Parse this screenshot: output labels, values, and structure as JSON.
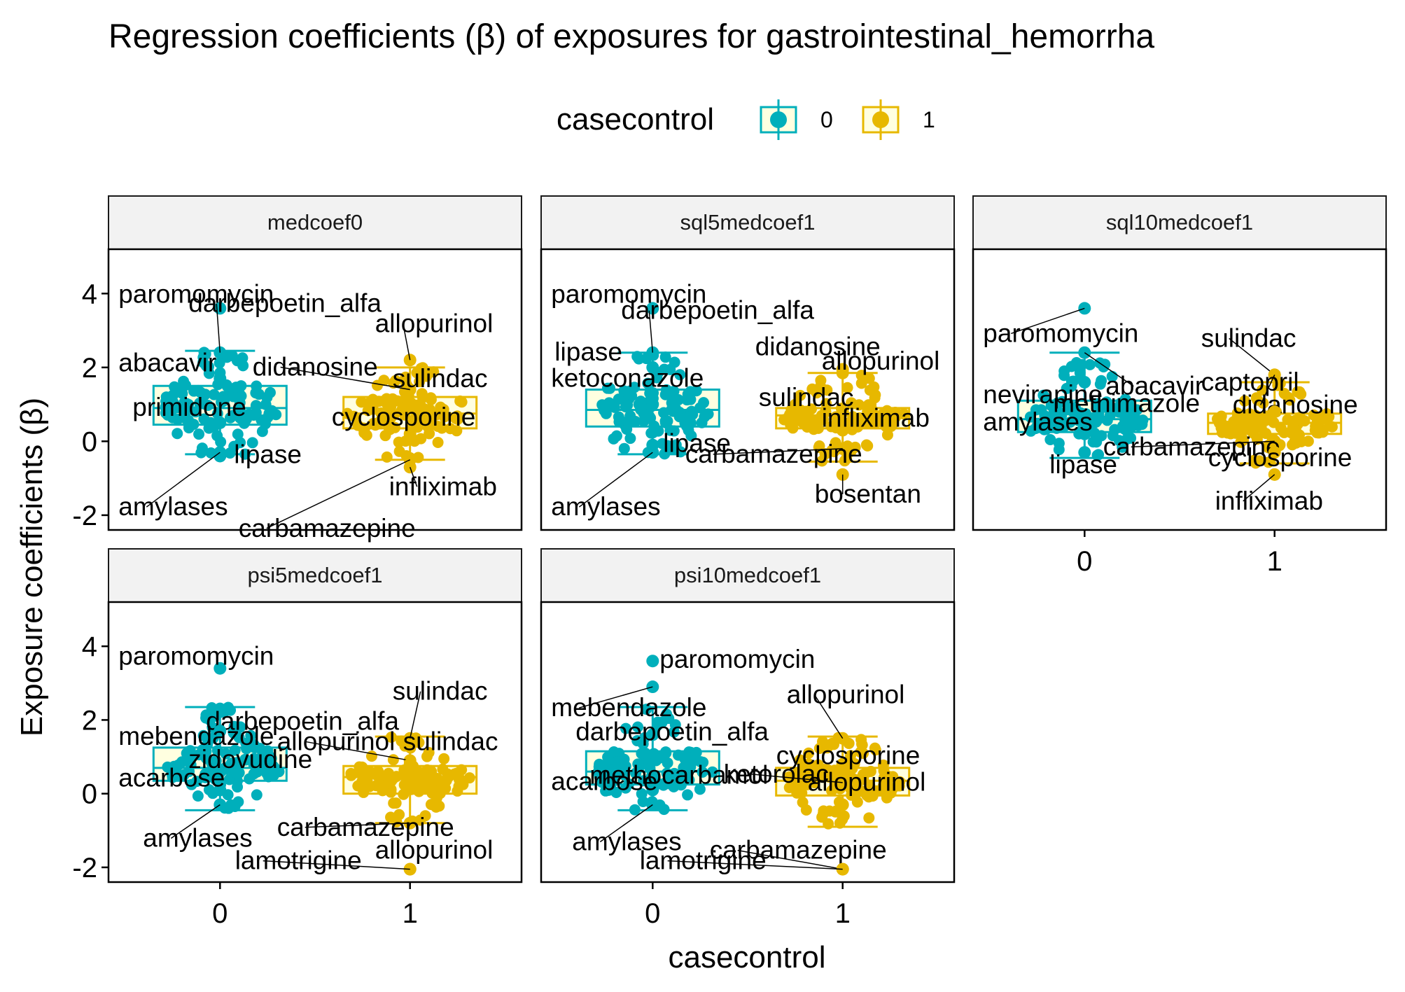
{
  "chart_data": {
    "type": "box",
    "title": "Regression coefficients (β) of exposures for gastrointestinal_hemorrha",
    "xlabel": "casecontrol",
    "ylabel": "Exposure coefficients (β)",
    "categories": [
      "0",
      "1"
    ],
    "ylim": [
      -2.4,
      5.2
    ],
    "yticks": [
      -2,
      0,
      2,
      4
    ],
    "yticklabels": [
      "-2",
      "0",
      "2",
      "4"
    ],
    "grid": false,
    "legend": {
      "title": "casecontrol",
      "position": "top",
      "entries": [
        {
          "label": "0",
          "color": "#00AFBB"
        },
        {
          "label": "1",
          "color": "#E7B800"
        }
      ]
    },
    "colors": {
      "0": "#00AFBB",
      "1": "#E7B800",
      "box_fill": "#FFFFE0"
    },
    "panels": [
      {
        "name": "medcoef0",
        "boxes": [
          {
            "group": "0",
            "min": -0.35,
            "q1": 0.45,
            "median": 0.9,
            "q3": 1.5,
            "max": 2.45
          },
          {
            "group": "1",
            "min": -0.5,
            "q1": 0.35,
            "median": 0.75,
            "q3": 1.2,
            "max": 2.0
          }
        ],
        "labels": [
          {
            "group": "0",
            "text": "paromomycin",
            "y": 3.6
          },
          {
            "group": "0",
            "text": "darbepoetin_alfa",
            "y": 2.4
          },
          {
            "group": "0",
            "text": "abacavir",
            "y": 1.7
          },
          {
            "group": "0",
            "text": "primidone",
            "y": 0.5
          },
          {
            "group": "0",
            "text": "lipase",
            "y": -0.4
          },
          {
            "group": "0",
            "text": "amylases",
            "y": -0.3
          },
          {
            "group": "1",
            "text": "allopurinol",
            "y": 2.2
          },
          {
            "group": "1",
            "text": "didanosine",
            "y": 1.4
          },
          {
            "group": "1",
            "text": "sulindac",
            "y": 0.9
          },
          {
            "group": "1",
            "text": "cyclosporine",
            "y": 0.2
          },
          {
            "group": "1",
            "text": "carbamazepine",
            "y": -0.5
          },
          {
            "group": "1",
            "text": "infliximab",
            "y": -0.7
          }
        ]
      },
      {
        "name": "sql5medcoef1",
        "boxes": [
          {
            "group": "0",
            "min": -0.35,
            "q1": 0.4,
            "median": 0.85,
            "q3": 1.4,
            "max": 2.4
          },
          {
            "group": "1",
            "min": -0.55,
            "q1": 0.35,
            "median": 0.7,
            "q3": 0.9,
            "max": 1.85
          }
        ],
        "labels": [
          {
            "group": "0",
            "text": "paromomycin",
            "y": 3.6
          },
          {
            "group": "0",
            "text": "darbepoetin_alfa",
            "y": 2.4
          },
          {
            "group": "0",
            "text": "lipase",
            "y": 2.0
          },
          {
            "group": "0",
            "text": "ketoconazole",
            "y": 1.0
          },
          {
            "group": "0",
            "text": "lipase",
            "y": -0.1
          },
          {
            "group": "0",
            "text": "amylases",
            "y": -0.3
          },
          {
            "group": "1",
            "text": "didanosine",
            "y": 1.95
          },
          {
            "group": "1",
            "text": "allopurinol",
            "y": 1.85
          },
          {
            "group": "1",
            "text": "sulindac",
            "y": 0.8
          },
          {
            "group": "1",
            "text": "infliximab",
            "y": 0.3
          },
          {
            "group": "1",
            "text": "carbamazepine",
            "y": -0.2
          },
          {
            "group": "1",
            "text": "bosentan",
            "y": -0.9
          }
        ]
      },
      {
        "name": "sql10medcoef1",
        "boxes": [
          {
            "group": "0",
            "min": -0.45,
            "q1": 0.25,
            "median": 0.6,
            "q3": 1.1,
            "max": 2.4
          },
          {
            "group": "1",
            "min": -0.6,
            "q1": 0.2,
            "median": 0.5,
            "q3": 0.75,
            "max": 1.6
          }
        ],
        "labels": [
          {
            "group": "0",
            "text": "paromomycin",
            "y": 3.6
          },
          {
            "group": "0",
            "text": "abacavir",
            "y": 2.4
          },
          {
            "group": "0",
            "text": "nevirapine",
            "y": 1.6
          },
          {
            "group": "0",
            "text": "methimazole",
            "y": 0.6
          },
          {
            "group": "0",
            "text": "amylases",
            "y": 0.2
          },
          {
            "group": "0",
            "text": "lipase",
            "y": -0.3
          },
          {
            "group": "1",
            "text": "sulindac",
            "y": 1.8
          },
          {
            "group": "1",
            "text": "didanosine",
            "y": 1.8
          },
          {
            "group": "1",
            "text": "captopril",
            "y": 0.8
          },
          {
            "group": "1",
            "text": "carbamazepine",
            "y": 0.0
          },
          {
            "group": "1",
            "text": "cyclosporine",
            "y": -0.3
          },
          {
            "group": "1",
            "text": "infliximab",
            "y": -0.9
          }
        ]
      },
      {
        "name": "psi5medcoef1",
        "boxes": [
          {
            "group": "0",
            "min": -0.45,
            "q1": 0.35,
            "median": 0.7,
            "q3": 1.25,
            "max": 2.35
          },
          {
            "group": "1",
            "min": -0.8,
            "q1": 0.0,
            "median": 0.45,
            "q3": 0.75,
            "max": 1.55
          }
        ],
        "labels": [
          {
            "group": "0",
            "text": "paromomycin",
            "y": 3.4
          },
          {
            "group": "0",
            "text": "darbepoetin_alfa",
            "y": 2.3
          },
          {
            "group": "0",
            "text": "mebendazole",
            "y": 1.7
          },
          {
            "group": "0",
            "text": "zidovudine",
            "y": 0.6
          },
          {
            "group": "0",
            "text": "acarbose",
            "y": 0.1
          },
          {
            "group": "0",
            "text": "amylases",
            "y": -0.3
          },
          {
            "group": "1",
            "text": "sulindac",
            "y": 1.5
          },
          {
            "group": "1",
            "text": "allopurinol",
            "y": 0.9
          },
          {
            "group": "1",
            "text": "sulindac",
            "y": 0.8
          },
          {
            "group": "1",
            "text": "carbamazepine",
            "y": -0.8
          },
          {
            "group": "1",
            "text": "allopurinol",
            "y": -2.05
          },
          {
            "group": "1",
            "text": "lamotrigine",
            "y": -2.05
          }
        ]
      },
      {
        "name": "psi10medcoef1",
        "boxes": [
          {
            "group": "0",
            "min": -0.45,
            "q1": 0.25,
            "median": 0.6,
            "q3": 1.15,
            "max": 2.35
          },
          {
            "group": "1",
            "min": -0.9,
            "q1": -0.05,
            "median": 0.35,
            "q3": 0.7,
            "max": 1.55
          }
        ],
        "labels": [
          {
            "group": "0",
            "text": "paromomycin",
            "y": 3.6
          },
          {
            "group": "0",
            "text": "mebendazole",
            "y": 2.9
          },
          {
            "group": "0",
            "text": "darbepoetin_alfa",
            "y": 1.6
          },
          {
            "group": "0",
            "text": "methocarbamol",
            "y": 0.5
          },
          {
            "group": "0",
            "text": "acarbose",
            "y": 0.1
          },
          {
            "group": "0",
            "text": "amylases",
            "y": -0.3
          },
          {
            "group": "1",
            "text": "allopurinol",
            "y": 1.5
          },
          {
            "group": "1",
            "text": "cyclosporine",
            "y": 0.8
          },
          {
            "group": "1",
            "text": "ketorolac",
            "y": 0.3
          },
          {
            "group": "1",
            "text": "allopurinol",
            "y": -0.3
          },
          {
            "group": "1",
            "text": "carbamazepine",
            "y": -2.05
          },
          {
            "group": "1",
            "text": "lamotrigine",
            "y": -2.05
          }
        ]
      }
    ]
  }
}
